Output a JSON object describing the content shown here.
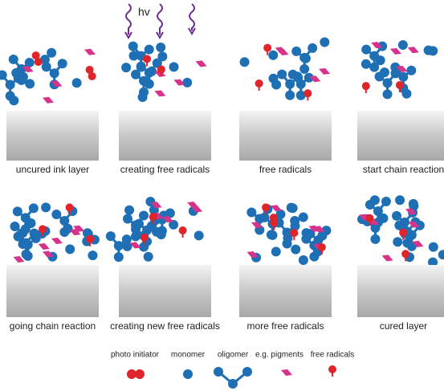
{
  "hv": "hv",
  "panels": [
    {
      "label": "uncured ink layer"
    },
    {
      "label": "creating free radicals"
    },
    {
      "label": "free radicals"
    },
    {
      "label": "start chain reaction"
    },
    {
      "label": "going chain reaction"
    },
    {
      "label": "creating new free radicals"
    },
    {
      "label": "more free radicals"
    },
    {
      "label": "cured layer"
    }
  ],
  "legend": [
    {
      "label": "photo initiator"
    },
    {
      "label": "monomer"
    },
    {
      "label": "oligomer"
    },
    {
      "label": "e.g. pigments"
    },
    {
      "label": "free radicals"
    }
  ]
}
